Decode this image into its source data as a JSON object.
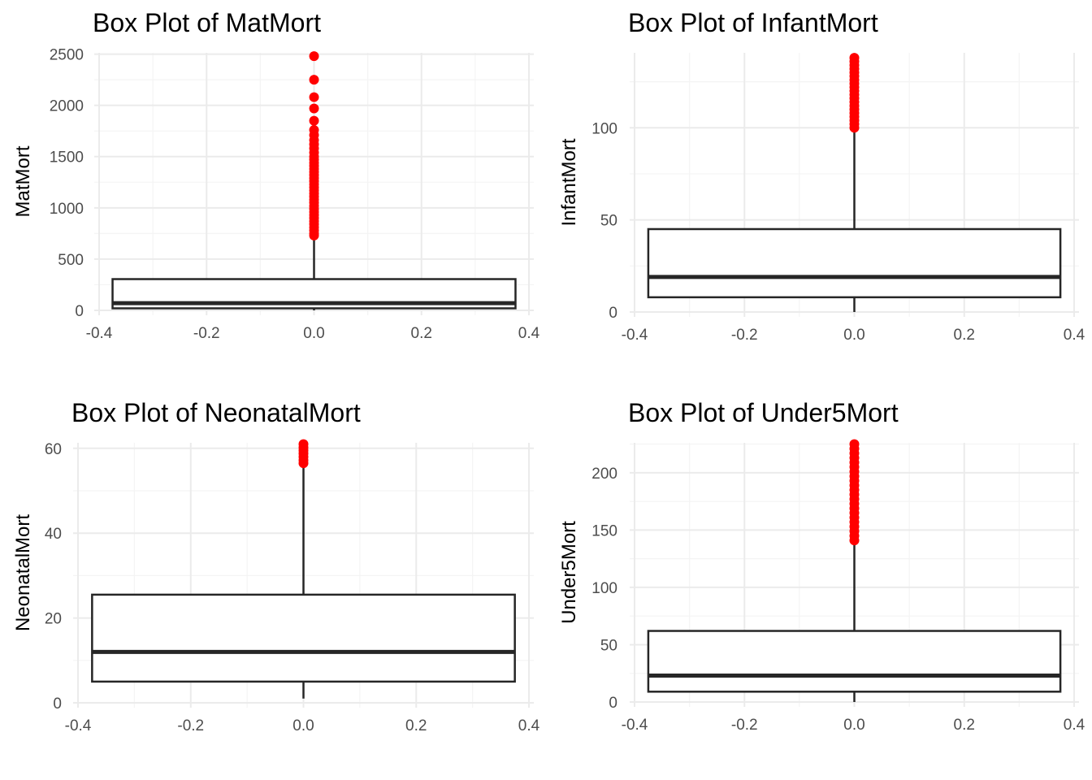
{
  "colors": {
    "outlier": "#ff0000",
    "box_stroke": "#262626",
    "grid": "#ebebeb",
    "text": "#4d4d4d"
  },
  "chart_data": [
    {
      "type": "box",
      "title": "Box Plot of MatMort",
      "xlabel": "",
      "ylabel": "MatMort",
      "xlim": [
        -0.4,
        0.4
      ],
      "ylim": [
        0,
        2500
      ],
      "x_ticks": [
        -0.4,
        -0.2,
        0.0,
        0.2,
        0.4
      ],
      "x_tick_labels": [
        "-0.4",
        "-0.2",
        "0.0",
        "0.2",
        "0.4"
      ],
      "y_ticks": [
        0,
        500,
        1000,
        1500,
        2000,
        2500
      ],
      "y_tick_labels": [
        "0",
        "500",
        "1000",
        "1500",
        "2000",
        "2500"
      ],
      "grid": true,
      "box": {
        "x_min": -0.375,
        "x_max": 0.375,
        "whisker_low": 0,
        "q1": 20,
        "median": 70,
        "q3": 305,
        "whisker_high": 715
      },
      "outliers": [
        2480,
        2250,
        2080,
        1970,
        1850,
        1760,
        1710,
        1660,
        1620,
        1580,
        1540,
        1500,
        1470,
        1440,
        1410,
        1380,
        1350,
        1320,
        1290,
        1260,
        1230,
        1200,
        1170,
        1140,
        1110,
        1080,
        1050,
        1020,
        990,
        960,
        930,
        900,
        870,
        840,
        810,
        780,
        750,
        730
      ]
    },
    {
      "type": "box",
      "title": "Box Plot of InfantMort",
      "xlabel": "",
      "ylabel": "InfantMort",
      "xlim": [
        -0.4,
        0.4
      ],
      "ylim": [
        0,
        140
      ],
      "x_ticks": [
        -0.4,
        -0.2,
        0.0,
        0.2,
        0.4
      ],
      "x_tick_labels": [
        "-0.4",
        "-0.2",
        "0.0",
        "0.2",
        "0.4"
      ],
      "y_ticks": [
        0,
        50,
        100
      ],
      "y_tick_labels": [
        "0",
        "50",
        "100"
      ],
      "grid": true,
      "box": {
        "x_min": -0.375,
        "x_max": 0.375,
        "whisker_low": 0,
        "q1": 8,
        "median": 19,
        "q3": 45,
        "whisker_high": 100
      },
      "outliers": [
        138,
        136,
        134,
        132,
        130,
        128,
        126,
        124,
        122,
        120,
        118,
        116,
        114,
        112,
        110,
        108,
        106,
        104,
        102,
        100
      ]
    },
    {
      "type": "box",
      "title": "Box Plot of NeonatalMort",
      "xlabel": "",
      "ylabel": "NeonatalMort",
      "xlim": [
        -0.4,
        0.4
      ],
      "ylim": [
        0,
        61
      ],
      "x_ticks": [
        -0.4,
        -0.2,
        0.0,
        0.2,
        0.4
      ],
      "x_tick_labels": [
        "-0.4",
        "-0.2",
        "0.0",
        "0.2",
        "0.4"
      ],
      "y_ticks": [
        0,
        20,
        40,
        60
      ],
      "y_tick_labels": [
        "0",
        "20",
        "40",
        "60"
      ],
      "grid": true,
      "box": {
        "x_min": -0.375,
        "x_max": 0.375,
        "whisker_low": 1,
        "q1": 5,
        "median": 12,
        "q3": 25.5,
        "whisker_high": 56
      },
      "outliers": [
        61,
        60.2,
        59.5,
        58.8,
        58,
        57.2,
        56.5
      ]
    },
    {
      "type": "box",
      "title": "Box Plot of Under5Mort",
      "xlabel": "",
      "ylabel": "Under5Mort",
      "xlim": [
        -0.4,
        0.4
      ],
      "ylim": [
        0,
        225
      ],
      "x_ticks": [
        -0.4,
        -0.2,
        0.0,
        0.2,
        0.4
      ],
      "x_tick_labels": [
        "-0.4",
        "-0.2",
        "0.0",
        "0.2",
        "0.4"
      ],
      "y_ticks": [
        0,
        50,
        100,
        150,
        200
      ],
      "y_tick_labels": [
        "0",
        "50",
        "100",
        "150",
        "200"
      ],
      "grid": true,
      "box": {
        "x_min": -0.375,
        "x_max": 0.375,
        "whisker_low": 0,
        "q1": 9,
        "median": 23,
        "q3": 62,
        "whisker_high": 140
      },
      "outliers": [
        225,
        221,
        217,
        213,
        209,
        205,
        201,
        197,
        193,
        189,
        185,
        181,
        177,
        173,
        169,
        165,
        161,
        157,
        153,
        149,
        145,
        141
      ]
    }
  ]
}
